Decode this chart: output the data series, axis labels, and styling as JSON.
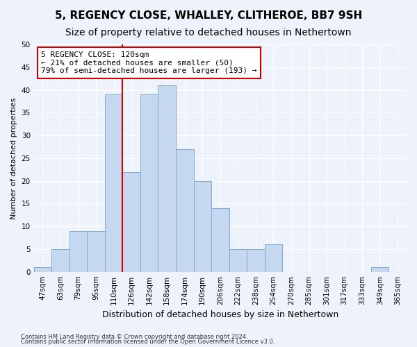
{
  "title": "5, REGENCY CLOSE, WHALLEY, CLITHEROE, BB7 9SH",
  "subtitle": "Size of property relative to detached houses in Nethertown",
  "xlabel": "Distribution of detached houses by size in Nethertown",
  "ylabel": "Number of detached properties",
  "categories": [
    "47sqm",
    "63sqm",
    "79sqm",
    "95sqm",
    "110sqm",
    "126sqm",
    "142sqm",
    "158sqm",
    "174sqm",
    "190sqm",
    "206sqm",
    "222sqm",
    "238sqm",
    "254sqm",
    "270sqm",
    "285sqm",
    "301sqm",
    "317sqm",
    "333sqm",
    "349sqm",
    "365sqm"
  ],
  "values": [
    1,
    5,
    9,
    9,
    39,
    22,
    39,
    41,
    27,
    20,
    14,
    5,
    5,
    6,
    0,
    0,
    0,
    0,
    0,
    1,
    0
  ],
  "bar_color": "#c5d8f0",
  "bar_edge_color": "#7aadd4",
  "vline_color": "#cc0000",
  "annotation_text": "5 REGENCY CLOSE: 120sqm\n← 21% of detached houses are smaller (50)\n79% of semi-detached houses are larger (193) →",
  "annotation_box_color": "#ffffff",
  "annotation_box_edge_color": "#cc0000",
  "ylim": [
    0,
    50
  ],
  "yticks": [
    0,
    5,
    10,
    15,
    20,
    25,
    30,
    35,
    40,
    45,
    50
  ],
  "footnote1": "Contains HM Land Registry data © Crown copyright and database right 2024.",
  "footnote2": "Contains public sector information licensed under the Open Government Licence v3.0.",
  "background_color": "#eef2fa",
  "grid_color": "#ffffff",
  "title_fontsize": 11,
  "subtitle_fontsize": 10,
  "xlabel_fontsize": 9,
  "ylabel_fontsize": 8,
  "tick_fontsize": 7.5,
  "annotation_fontsize": 8,
  "footnote_fontsize": 6
}
